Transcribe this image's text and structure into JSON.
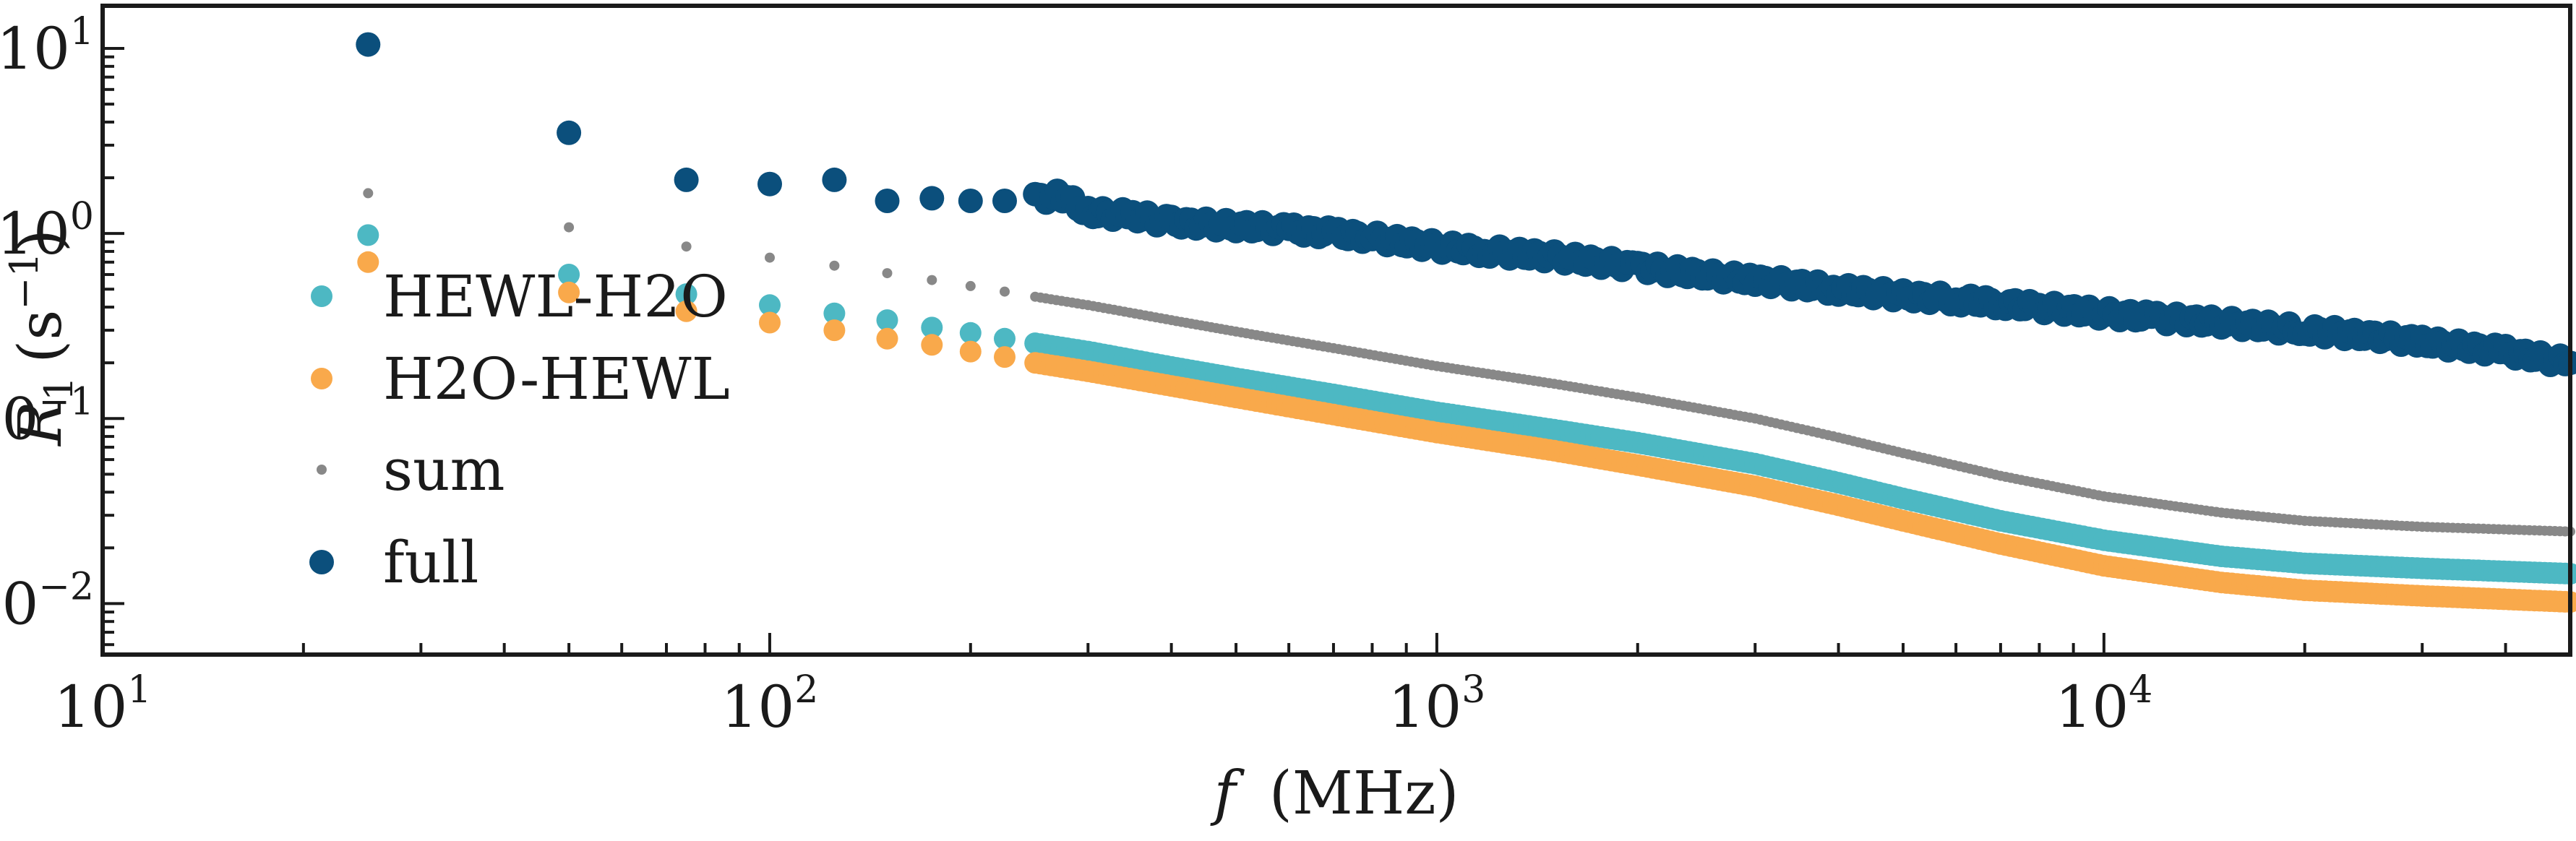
{
  "chart_data": {
    "type": "scatter",
    "xlabel_var": "f",
    "xlabel_unit": "(MHz)",
    "ylabel_var": "R",
    "ylabel_sub": "1",
    "ylabel_unit_open": "(s",
    "ylabel_unit_sup": "−1",
    "ylabel_unit_close": ")",
    "xscale": "log",
    "yscale": "log",
    "xlim": [
      10,
      50000
    ],
    "ylim": [
      0.0053,
      17
    ],
    "grid": false,
    "legend_placement": "center-left",
    "x_ticks": [
      {
        "value": 10,
        "base": "10",
        "exp": "1"
      },
      {
        "value": 100,
        "base": "10",
        "exp": "2"
      },
      {
        "value": 1000,
        "base": "10",
        "exp": "3"
      },
      {
        "value": 10000,
        "base": "10",
        "exp": "4"
      }
    ],
    "y_ticks": [
      {
        "value": 0.01,
        "base": "10",
        "exp": "−2"
      },
      {
        "value": 0.1,
        "base": "10",
        "exp": "−1"
      },
      {
        "value": 1,
        "base": "10",
        "exp": "0"
      },
      {
        "value": 10,
        "base": "10",
        "exp": "1"
      }
    ],
    "series": [
      {
        "name": "HEWL-H2O",
        "color": "#4db8c3",
        "marker_size": 15,
        "x": [
          25,
          50,
          75,
          100,
          125,
          150,
          175,
          200,
          225,
          250,
          300,
          400,
          500,
          700,
          1000,
          1500,
          2000,
          3000,
          4000,
          5000,
          7000,
          10000,
          15000,
          20000,
          30000,
          50000
        ],
        "y": [
          0.98,
          0.6,
          0.47,
          0.41,
          0.37,
          0.34,
          0.31,
          0.29,
          0.27,
          0.255,
          0.23,
          0.19,
          0.165,
          0.135,
          0.108,
          0.087,
          0.074,
          0.057,
          0.045,
          0.037,
          0.028,
          0.022,
          0.018,
          0.0165,
          0.0155,
          0.0145
        ]
      },
      {
        "name": "H2O-HEWL",
        "color": "#f9a94b",
        "marker_size": 15,
        "x": [
          25,
          50,
          75,
          100,
          125,
          150,
          175,
          200,
          225,
          250,
          300,
          400,
          500,
          700,
          1000,
          1500,
          2000,
          3000,
          4000,
          5000,
          7000,
          10000,
          15000,
          20000,
          30000,
          50000
        ],
        "y": [
          0.7,
          0.48,
          0.38,
          0.33,
          0.3,
          0.27,
          0.25,
          0.23,
          0.215,
          0.2,
          0.18,
          0.15,
          0.13,
          0.105,
          0.084,
          0.067,
          0.056,
          0.043,
          0.034,
          0.028,
          0.021,
          0.016,
          0.013,
          0.0118,
          0.011,
          0.0102
        ]
      },
      {
        "name": "sum",
        "color": "#888888",
        "marker_size": 7,
        "x": [
          25,
          50,
          75,
          100,
          125,
          150,
          175,
          200,
          225,
          250,
          300,
          400,
          500,
          700,
          1000,
          1500,
          2000,
          3000,
          4000,
          5000,
          7000,
          10000,
          15000,
          20000,
          30000,
          50000
        ],
        "y": [
          1.65,
          1.08,
          0.85,
          0.74,
          0.67,
          0.61,
          0.56,
          0.52,
          0.485,
          0.455,
          0.41,
          0.34,
          0.295,
          0.24,
          0.192,
          0.154,
          0.13,
          0.1,
          0.079,
          0.065,
          0.049,
          0.038,
          0.031,
          0.028,
          0.026,
          0.0245
        ]
      },
      {
        "name": "full",
        "color": "#0b4f7c",
        "marker_size": 17,
        "x": [
          25,
          50,
          75,
          100,
          125,
          150,
          175,
          200,
          225,
          250,
          275,
          300,
          350,
          400,
          500,
          600,
          700,
          800,
          1000,
          1200,
          1500,
          2000,
          2500,
          3000,
          4000,
          5000,
          6000,
          7000,
          8000,
          10000,
          12000,
          15000,
          20000,
          25000,
          30000,
          40000,
          50000
        ],
        "y": [
          10.5,
          3.5,
          1.95,
          1.85,
          1.95,
          1.5,
          1.55,
          1.5,
          1.5,
          1.55,
          1.6,
          1.3,
          1.25,
          1.15,
          1.1,
          1.05,
          1.0,
          0.95,
          0.85,
          0.8,
          0.75,
          0.66,
          0.6,
          0.56,
          0.5,
          0.46,
          0.44,
          0.42,
          0.4,
          0.37,
          0.35,
          0.33,
          0.3,
          0.28,
          0.26,
          0.23,
          0.2
        ]
      }
    ]
  }
}
